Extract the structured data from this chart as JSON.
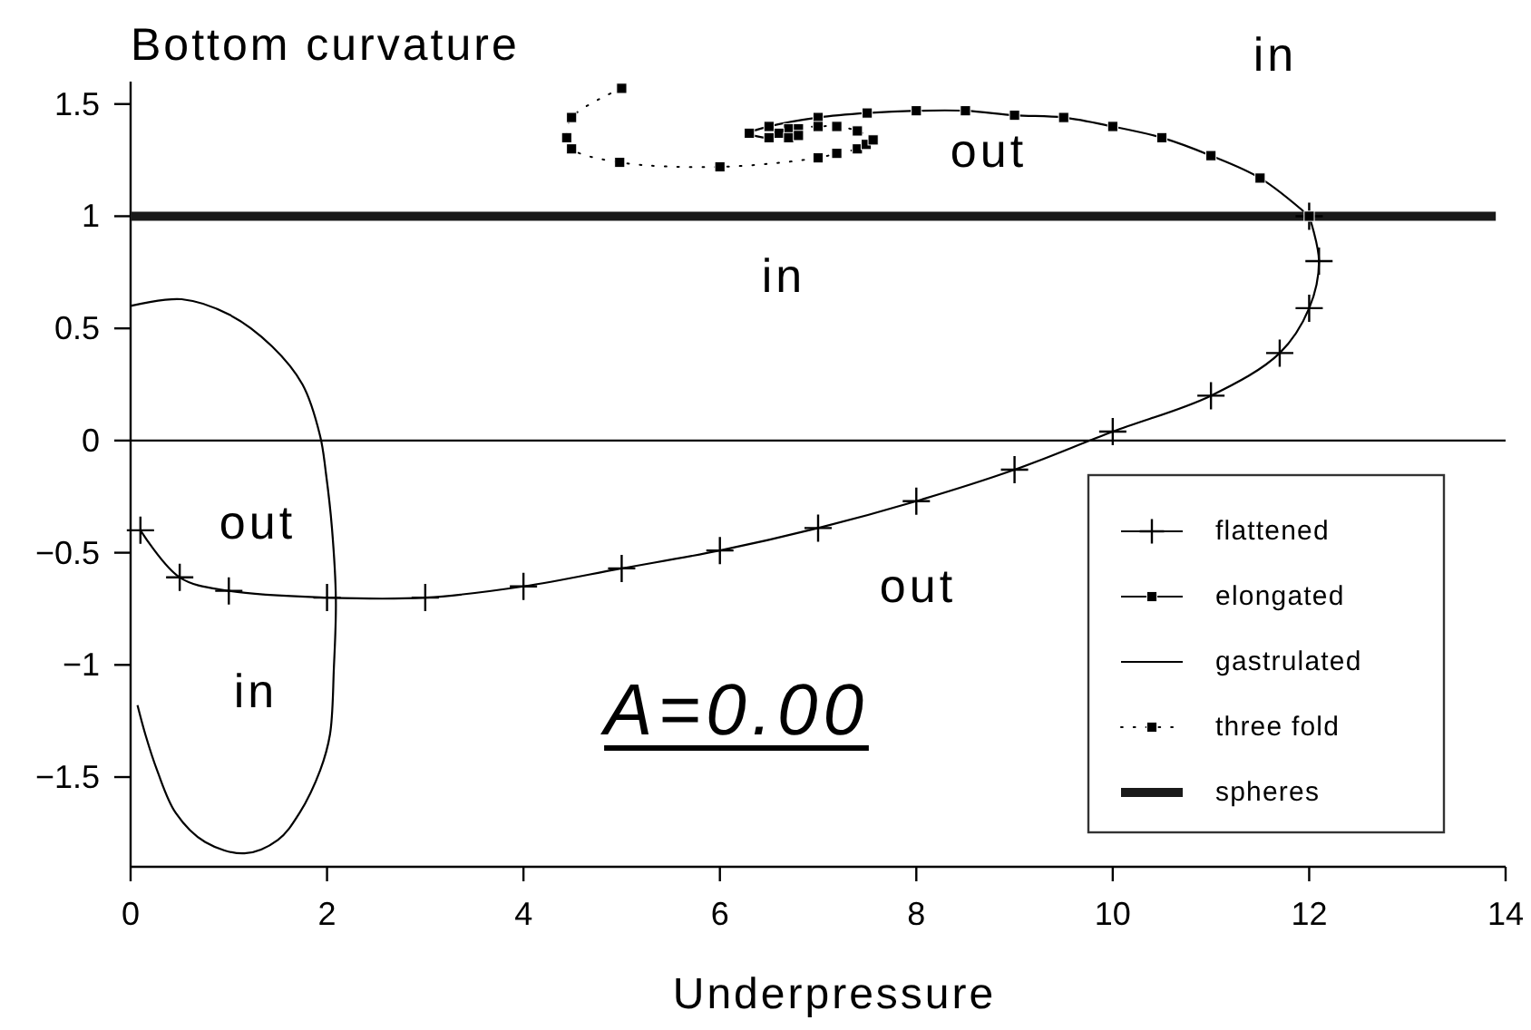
{
  "chart_data": {
    "type": "line",
    "title": "Bottom curvature",
    "xlabel": "Underpressure",
    "xlim": [
      0,
      14
    ],
    "ylim": [
      -1.9,
      1.6
    ],
    "xticks": [
      0,
      2,
      4,
      6,
      8,
      10,
      12,
      14
    ],
    "yticks": [
      -1.5,
      -1,
      -0.5,
      0,
      0.5,
      1,
      1.5
    ],
    "legend": "bottom right",
    "series": [
      {
        "name": "flattened",
        "color": "#000000",
        "marker": "cross",
        "x": [
          0.1,
          0.5,
          1,
          2,
          3,
          4,
          5,
          6,
          7,
          8,
          9,
          10,
          11,
          11.7,
          12,
          12.1,
          12
        ],
        "values": [
          -0.4,
          -0.61,
          -0.67,
          -0.7,
          -0.7,
          -0.65,
          -0.57,
          -0.49,
          -0.39,
          -0.27,
          -0.13,
          0.04,
          0.2,
          0.39,
          0.59,
          0.8,
          1.0
        ]
      },
      {
        "name": "elongated",
        "color": "#000000",
        "marker": "square",
        "x": [
          6.7,
          6.6,
          6.5,
          6.3,
          6.5,
          7,
          7.5,
          8,
          8.5,
          9,
          9.5,
          10,
          10.5,
          11,
          11.5,
          12
        ],
        "values": [
          1.39,
          1.37,
          1.35,
          1.37,
          1.4,
          1.44,
          1.46,
          1.47,
          1.47,
          1.45,
          1.44,
          1.4,
          1.35,
          1.27,
          1.17,
          1.0
        ]
      },
      {
        "name": "gastrulated",
        "color": "#000000",
        "x": [
          0,
          0.52,
          1.01,
          1.44,
          1.75,
          1.93,
          1.99,
          2.05,
          2.09,
          2.07,
          2.03,
          1.93,
          1.72,
          1.5,
          1.16,
          0.76,
          0.46,
          0.27,
          0.15,
          0.07
        ],
        "values": [
          0.6,
          0.63,
          0.56,
          0.42,
          0.25,
          0.02,
          -0.15,
          -0.39,
          -0.71,
          -1.01,
          -1.31,
          -1.47,
          -1.66,
          -1.78,
          -1.84,
          -1.79,
          -1.66,
          -1.47,
          -1.31,
          -1.18
        ]
      },
      {
        "name": "three fold",
        "color": "#000000",
        "marker": "square",
        "line_style": "dotted",
        "x": [
          5,
          4.49,
          4.44,
          4.49,
          4.98,
          6,
          7,
          7.19,
          7.4,
          7.49,
          7.56,
          7.4,
          7.19,
          7,
          6.8,
          6.7,
          6.8
        ],
        "values": [
          1.57,
          1.44,
          1.35,
          1.3,
          1.24,
          1.22,
          1.26,
          1.28,
          1.3,
          1.32,
          1.34,
          1.38,
          1.4,
          1.4,
          1.39,
          1.35,
          1.36
        ]
      },
      {
        "name": "spheres",
        "color": "#1a1a1a",
        "x": [
          0,
          13.9
        ],
        "values": [
          1,
          1
        ]
      }
    ],
    "ref_lines": [
      {
        "axis": "y",
        "value": 0,
        "color": "#000000"
      }
    ],
    "annotations": [
      "in",
      "out",
      "in",
      "out",
      "out",
      "in",
      "A=0.00"
    ]
  }
}
